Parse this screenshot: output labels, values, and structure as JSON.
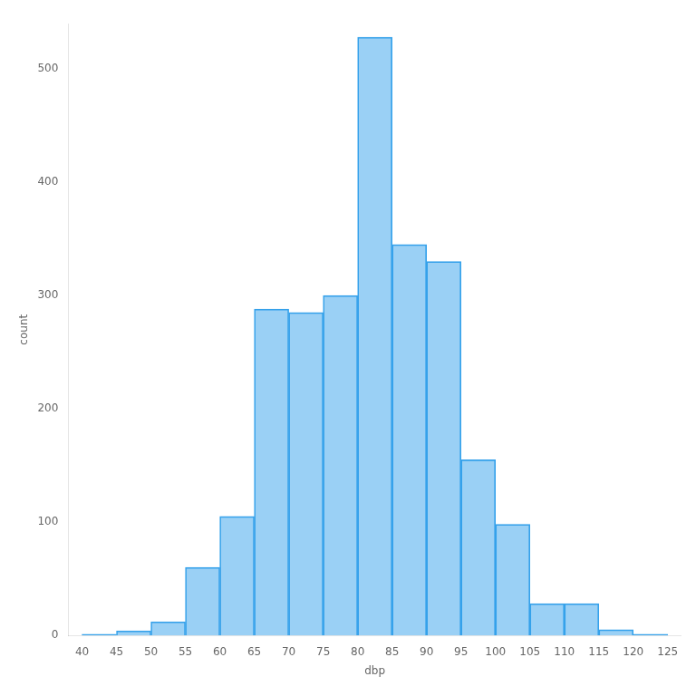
{
  "chart_data": {
    "type": "histogram",
    "bins": [
      40,
      45,
      50,
      55,
      60,
      65,
      70,
      75,
      80,
      85,
      90,
      95,
      100,
      105,
      110,
      115,
      120,
      125
    ],
    "values": [
      1,
      4,
      12,
      60,
      105,
      288,
      285,
      300,
      528,
      345,
      330,
      155,
      98,
      28,
      28,
      5,
      1
    ],
    "xlabel": "dbp",
    "ylabel": "count",
    "xlim": [
      38,
      127
    ],
    "ylim": [
      0,
      540
    ],
    "xticks": [
      40,
      45,
      50,
      55,
      60,
      65,
      70,
      75,
      80,
      85,
      90,
      95,
      100,
      105,
      110,
      115,
      120,
      125
    ],
    "yticks": [
      0,
      100,
      200,
      300,
      400,
      500
    ],
    "grid": false
  }
}
